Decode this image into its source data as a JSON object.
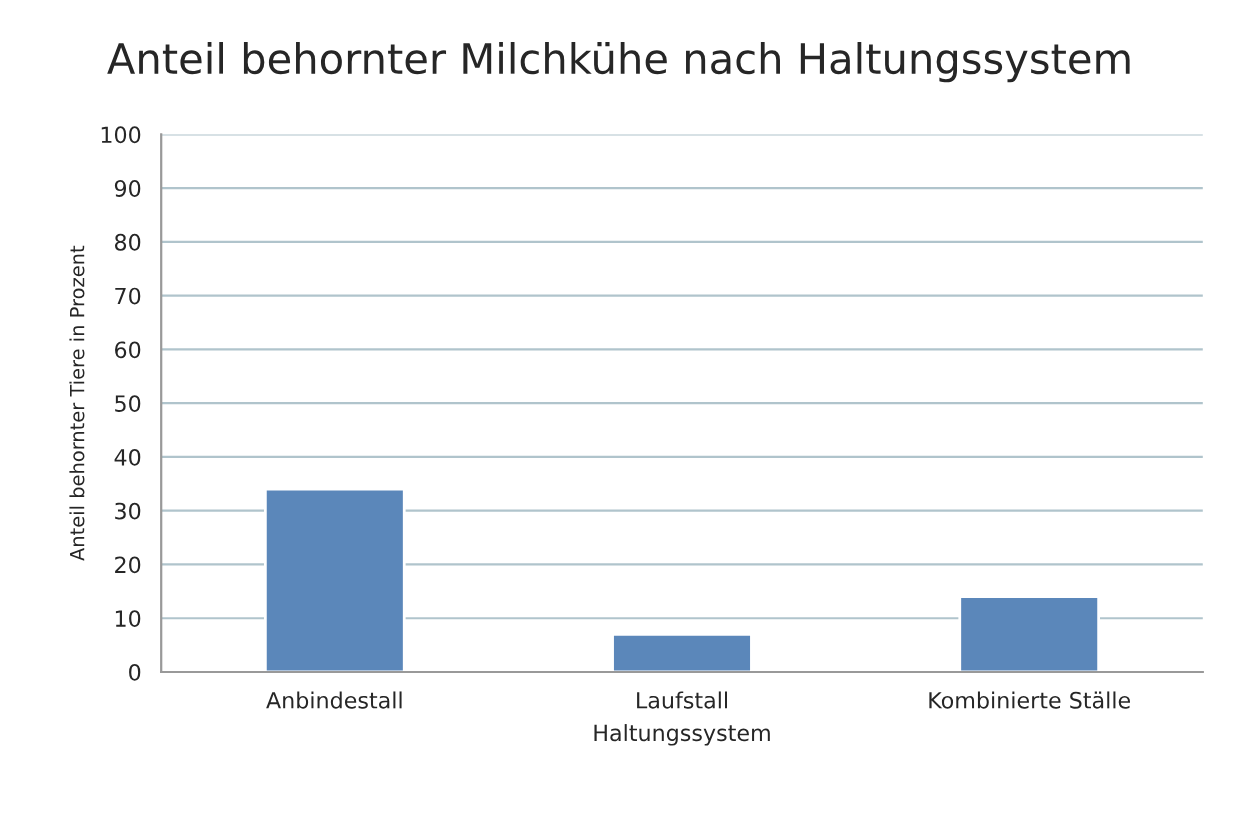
{
  "chart_data": {
    "type": "bar",
    "title": "Anteil behornter Milchkühe nach Haltungssystem",
    "xlabel": "Haltungssystem",
    "ylabel": "Anteil behornter Tiere in Prozent",
    "categories": [
      "Anbindestall",
      "Laufstall",
      "Kombinierte Ställe"
    ],
    "values": [
      34,
      7,
      14
    ],
    "color": "#5b87ba",
    "ylim": [
      0,
      100
    ],
    "yticks": [
      0,
      10,
      20,
      30,
      40,
      50,
      60,
      70,
      80,
      90,
      100
    ],
    "grid": "y"
  }
}
